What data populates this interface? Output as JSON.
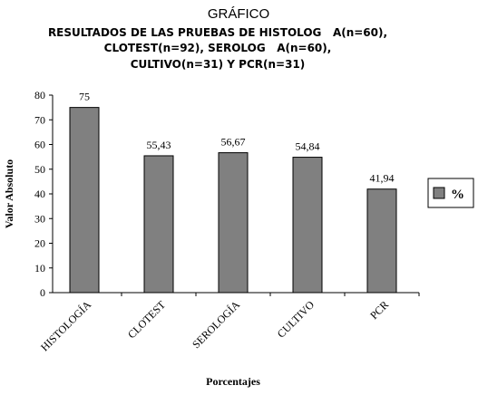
{
  "chart_data": {
    "type": "bar",
    "title": "GRÁFICO",
    "subtitle": [
      "RESULTADOS DE LAS PRUEBAS DE HISTOLOG   A(n=60),",
      "CLOTEST(n=92), SEROLOG   A(n=60),",
      "CULTIVO(n=31) Y PCR(n=31)"
    ],
    "categories": [
      "HISTOLOGÍA",
      "CLOTEST",
      "SEROLOGÍA",
      "CULTIVO",
      "PCR"
    ],
    "series": [
      {
        "name": "%",
        "color": "#808080",
        "values": [
          75,
          55.43,
          56.67,
          54.84,
          41.94
        ],
        "value_labels": [
          "75",
          "55,43",
          "56,67",
          "54,84",
          "41,94"
        ]
      }
    ],
    "ylim": [
      0,
      80
    ],
    "yticks": [
      0,
      10,
      20,
      30,
      40,
      50,
      60,
      70,
      80
    ],
    "y_label": "Valor Absoluto",
    "x_label": "Porcentajes",
    "legend": "right"
  }
}
